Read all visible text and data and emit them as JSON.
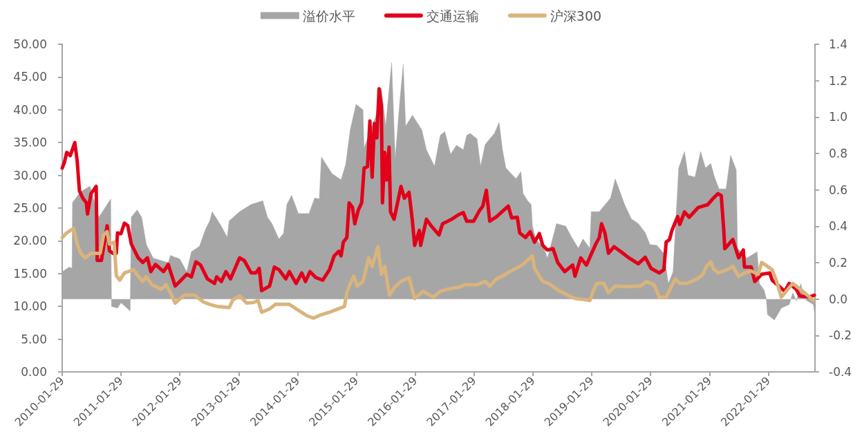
{
  "chart_data": {
    "type": "line",
    "legend": "top",
    "marker": "none",
    "xlim": [
      "2010-01-29",
      "2022-11-15"
    ],
    "xticks": [
      "2010-01-29",
      "2011-01-29",
      "2012-01-29",
      "2013-01-29",
      "2014-01-29",
      "2015-01-29",
      "2016-01-29",
      "2017-01-29",
      "2018-01-29",
      "2019-01-29",
      "2020-01-29",
      "2021-01-29",
      "2022-01-29"
    ],
    "ylim": [
      0,
      50
    ],
    "yticks": [
      {
        "value": 0,
        "label": "0.00"
      },
      {
        "value": 5,
        "label": "5.00"
      },
      {
        "value": 10,
        "label": "10.00"
      },
      {
        "value": 15,
        "label": "15.00"
      },
      {
        "value": 20,
        "label": "20.00"
      },
      {
        "value": 25,
        "label": "25.00"
      },
      {
        "value": 30,
        "label": "30.00"
      },
      {
        "value": 35,
        "label": "35.00"
      },
      {
        "value": 40,
        "label": "40.00"
      },
      {
        "value": 45,
        "label": "45.00"
      },
      {
        "value": 50,
        "label": "50.00"
      }
    ],
    "y2lim": [
      -0.4,
      1.4
    ],
    "y2ticks": [
      {
        "value": -0.4,
        "label": "-0.4"
      },
      {
        "value": -0.2,
        "label": "-0.2"
      },
      {
        "value": 0,
        "label": "0.0"
      },
      {
        "value": 0.2,
        "label": "0.2"
      },
      {
        "value": 0.4,
        "label": "0.4"
      },
      {
        "value": 0.6,
        "label": "0.6"
      },
      {
        "value": 0.8,
        "label": "0.8"
      },
      {
        "value": 1,
        "label": "1.0"
      },
      {
        "value": 1.2,
        "label": "1.2"
      },
      {
        "value": 1.4,
        "label": "1.4"
      }
    ],
    "series": [
      {
        "name": "溢价水平",
        "type": "area",
        "axis": "y2",
        "color": "#a6a6a6",
        "x": [
          "2010-01-29",
          "2010-03-13",
          "2010-03-31",
          "2010-04-03",
          "2010-05-24",
          "2010-07-20",
          "2010-09-14",
          "2010-11-26",
          "2010-12-01",
          "2011-01-07",
          "2011-01-29",
          "2011-03-27",
          "2011-04-03",
          "2011-05-09",
          "2011-06-06",
          "2011-07-05",
          "2011-08-17",
          "2011-11-18",
          "2011-12-02",
          "2012-01-29",
          "2012-03-12",
          "2012-04-10",
          "2012-05-30",
          "2012-07-05",
          "2012-08-02",
          "2012-08-17",
          "2012-10-13",
          "2012-11-18",
          "2012-12-01",
          "2013-02-03",
          "2013-04-16",
          "2013-06-27",
          "2013-07-26",
          "2013-08-23",
          "2013-10-05",
          "2013-11-03",
          "2013-11-24",
          "2013-12-23",
          "2014-02-03",
          "2014-04-10",
          "2014-05-15",
          "2014-06-13",
          "2014-06-26",
          "2014-08-30",
          "2014-10-26",
          "2014-11-24",
          "2014-12-22",
          "2015-01-27",
          "2015-03-11",
          "2015-03-18",
          "2015-05-28",
          "2015-07-03",
          "2015-07-30",
          "2015-09-05",
          "2015-09-27",
          "2015-10-26",
          "2015-11-16",
          "2015-12-01",
          "2016-01-12",
          "2016-03-10",
          "2016-04-08",
          "2016-05-28",
          "2016-07-03",
          "2016-07-31",
          "2016-09-05",
          "2016-10-11",
          "2016-11-23",
          "2016-12-14",
          "2017-01-05",
          "2017-02-16",
          "2017-03-10",
          "2017-04-08",
          "2017-06-04",
          "2017-07-03",
          "2017-07-24",
          "2017-08-14",
          "2017-10-17",
          "2017-11-15",
          "2017-11-29",
          "2017-12-27",
          "2018-01-18",
          "2018-01-26",
          "2018-02-16",
          "2018-04-07",
          "2018-04-29",
          "2018-06-10",
          "2018-06-24",
          "2018-08-21",
          "2018-09-26",
          "2018-11-07",
          "2018-12-06",
          "2019-01-17",
          "2019-01-26",
          "2019-03-17",
          "2019-05-26",
          "2019-06-24",
          "2019-07-23",
          "2019-08-21",
          "2019-10-02",
          "2019-11-14",
          "2019-12-27",
          "2020-01-25",
          "2020-03-09",
          "2020-04-21",
          "2020-05-19",
          "2020-06-17",
          "2020-07-22",
          "2020-08-27",
          "2020-09-18",
          "2020-10-31",
          "2020-12-05",
          "2021-01-04",
          "2021-02-06",
          "2021-03-01",
          "2021-03-29",
          "2021-05-12",
          "2021-06-09",
          "2021-07-14",
          "2021-07-22",
          "2021-09-17",
          "2021-11-21",
          "2021-12-05",
          "2022-01-03",
          "2022-01-17",
          "2022-01-24",
          "2022-03-08",
          "2022-04-20",
          "2022-06-08",
          "2022-06-30",
          "2022-07-23",
          "2022-08-19",
          "2022-09-10",
          "2022-11-05",
          "2022-11-11"
        ],
        "values": [
          0.15,
          0.175,
          0.17,
          0.53,
          0.59,
          0.62,
          0.45,
          0.55,
          -0.04,
          -0.05,
          -0.02,
          -0.065,
          0.45,
          0.49,
          0.45,
          0.3,
          0.225,
          0.2,
          0.24,
          0.22,
          0.15,
          0.26,
          0.29,
          0.38,
          0.43,
          0.48,
          0.4,
          0.34,
          0.43,
          0.48,
          0.52,
          0.54,
          0.45,
          0.415,
          0.33,
          0.36,
          0.52,
          0.57,
          0.47,
          0.47,
          0.555,
          0.55,
          0.78,
          0.69,
          0.655,
          0.74,
          0.93,
          1.07,
          1.04,
          0.83,
          1.0,
          1.16,
          0.95,
          1.3,
          0.77,
          1.09,
          1.29,
          0.95,
          1.01,
          0.93,
          0.82,
          0.73,
          0.9,
          0.92,
          0.795,
          0.845,
          0.82,
          0.9,
          0.91,
          0.88,
          0.73,
          0.85,
          0.91,
          0.97,
          0.82,
          0.72,
          0.66,
          0.7,
          0.58,
          0.54,
          0.52,
          0.4,
          0.33,
          0.28,
          0.225,
          0.365,
          0.415,
          0.4,
          0.34,
          0.28,
          0.33,
          0.28,
          0.48,
          0.48,
          0.555,
          0.66,
          0.59,
          0.52,
          0.44,
          0.415,
          0.365,
          0.3,
          0.295,
          0.25,
          0.085,
          0.15,
          0.72,
          0.81,
          0.68,
          0.67,
          0.81,
          0.72,
          0.745,
          0.67,
          0.605,
          0.605,
          0.79,
          0.71,
          0.28,
          0.225,
          0.26,
          0.085,
          0.05,
          0.0,
          -0.085,
          -0.115,
          -0.05,
          -0.03,
          0.035,
          -0.01,
          0.085,
          0.0,
          -0.03,
          -0.065
        ]
      },
      {
        "name": "交通运输",
        "color": "#e2001a",
        "x": [
          "2010-01-29",
          "2010-02-12",
          "2010-02-26",
          "2010-03-20",
          "2010-04-17",
          "2010-05-02",
          "2010-05-16",
          "2010-06-06",
          "2010-06-28",
          "2010-07-05",
          "2010-07-27",
          "2010-08-28",
          "2010-09-03",
          "2010-09-29",
          "2010-11-04",
          "2010-11-18",
          "2010-12-10",
          "2010-12-31",
          "2011-01-07",
          "2011-01-29",
          "2011-02-19",
          "2011-03-12",
          "2011-04-03",
          "2011-05-16",
          "2011-06-13",
          "2011-07-12",
          "2011-08-02",
          "2011-08-31",
          "2011-10-20",
          "2011-11-18",
          "2011-12-31",
          "2012-01-29",
          "2012-03-12",
          "2012-04-10",
          "2012-05-08",
          "2012-06-06",
          "2012-07-18",
          "2012-08-31",
          "2012-09-14",
          "2012-10-13",
          "2012-11-10",
          "2012-12-09",
          "2013-02-03",
          "2013-03-04",
          "2013-04-16",
          "2013-05-15",
          "2013-06-05",
          "2013-06-20",
          "2013-08-08",
          "2013-09-07",
          "2013-10-05",
          "2013-11-17",
          "2013-12-09",
          "2014-01-20",
          "2014-02-24",
          "2014-03-19",
          "2014-04-16",
          "2014-05-22",
          "2014-07-04",
          "2014-08-15",
          "2014-09-13",
          "2014-10-12",
          "2014-10-26",
          "2014-11-09",
          "2014-12-01",
          "2014-12-15",
          "2015-01-05",
          "2015-01-19",
          "2015-02-10",
          "2015-03-03",
          "2015-03-18",
          "2015-04-08",
          "2015-04-23",
          "2015-05-07",
          "2015-05-21",
          "2015-06-05",
          "2015-06-19",
          "2015-07-03",
          "2015-07-10",
          "2015-07-24",
          "2015-08-05",
          "2015-08-20",
          "2015-08-29",
          "2015-09-20",
          "2015-11-02",
          "2015-11-23",
          "2015-12-22",
          "2016-01-12",
          "2016-01-26",
          "2016-02-24",
          "2016-03-03",
          "2016-04-08",
          "2016-05-07",
          "2016-06-25",
          "2016-07-17",
          "2016-09-12",
          "2016-10-25",
          "2016-11-23",
          "2016-12-14",
          "2017-01-26",
          "2017-03-03",
          "2017-03-24",
          "2017-04-15",
          "2017-05-06",
          "2017-06-18",
          "2017-08-29",
          "2017-09-19",
          "2017-10-24",
          "2017-11-08",
          "2017-12-14",
          "2018-01-12",
          "2018-02-08",
          "2018-03-10",
          "2018-03-31",
          "2018-04-29",
          "2018-06-03",
          "2018-07-02",
          "2018-08-14",
          "2018-10-03",
          "2018-10-17",
          "2018-11-22",
          "2018-12-27",
          "2019-02-23",
          "2019-03-17",
          "2019-03-31",
          "2019-04-21",
          "2019-05-13",
          "2019-06-17",
          "2019-08-06",
          "2019-09-11",
          "2019-11-14",
          "2019-12-27",
          "2020-02-01",
          "2020-03-23",
          "2020-04-21",
          "2020-05-05",
          "2020-05-26",
          "2020-06-10",
          "2020-07-15",
          "2020-07-29",
          "2020-08-27",
          "2020-09-25",
          "2020-11-21",
          "2021-01-17",
          "2021-02-22",
          "2021-03-22",
          "2021-04-12",
          "2021-04-27",
          "2021-05-04",
          "2021-06-23",
          "2021-07-29",
          "2021-08-27",
          "2021-09-03",
          "2021-10-15",
          "2021-11-06",
          "2021-12-19",
          "2022-02-07",
          "2022-02-22",
          "2022-04-05",
          "2022-05-11",
          "2022-06-08",
          "2022-07-22",
          "2022-08-12",
          "2022-10-08",
          "2022-11-11"
        ],
        "values": [
          31.1,
          32.0,
          33.5,
          33.0,
          35.0,
          32.2,
          27.6,
          26.5,
          25.8,
          24.1,
          27.2,
          28.3,
          17.0,
          17.0,
          22.3,
          18.5,
          18.1,
          18.1,
          21.2,
          21.1,
          22.7,
          22.3,
          19.5,
          17.4,
          16.7,
          17.4,
          15.3,
          16.4,
          15.3,
          16.4,
          13.1,
          13.8,
          14.9,
          14.5,
          16.8,
          16.3,
          14.2,
          13.5,
          14.5,
          13.8,
          15.3,
          14.2,
          17.4,
          17.0,
          15.1,
          15.1,
          15.8,
          12.4,
          13.1,
          16.0,
          15.6,
          14.2,
          15.3,
          13.5,
          15.1,
          13.8,
          15.3,
          14.4,
          14.0,
          15.6,
          17.7,
          18.4,
          17.7,
          19.8,
          20.5,
          25.8,
          25.1,
          22.6,
          24.7,
          25.8,
          31.1,
          31.3,
          38.3,
          29.7,
          37.9,
          35.7,
          43.2,
          40.6,
          25.8,
          33.5,
          29.3,
          34.3,
          24.4,
          23.3,
          28.3,
          26.5,
          27.4,
          23.0,
          19.3,
          21.6,
          19.3,
          23.3,
          22.3,
          20.9,
          22.6,
          23.3,
          24.0,
          24.3,
          23.0,
          23.0,
          24.6,
          25.3,
          27.7,
          23.0,
          23.7,
          25.3,
          23.5,
          23.6,
          21.2,
          20.5,
          21.4,
          19.8,
          21.1,
          19.3,
          18.6,
          18.8,
          16.7,
          15.3,
          16.3,
          14.6,
          17.4,
          16.3,
          19.5,
          20.5,
          22.6,
          21.2,
          18.1,
          19.1,
          18.2,
          17.5,
          16.5,
          17.5,
          15.8,
          15.1,
          15.6,
          19.8,
          20.2,
          21.6,
          23.7,
          22.5,
          24.4,
          23.6,
          25.1,
          25.5,
          26.5,
          27.2,
          26.9,
          21.9,
          18.8,
          20.2,
          17.4,
          18.6,
          16.0,
          16.0,
          13.8,
          14.9,
          15.1,
          14.0,
          13.1,
          12.3,
          13.5,
          12.6,
          11.6,
          11.4,
          11.7
        ]
      },
      {
        "name": "沪深300",
        "color": "#d9b47c",
        "x": [
          "2010-01-29",
          "2010-02-26",
          "2010-04-10",
          "2010-05-02",
          "2010-05-24",
          "2010-06-21",
          "2010-07-27",
          "2010-09-22",
          "2010-10-13",
          "2010-11-04",
          "2010-11-18",
          "2010-12-17",
          "2010-12-31",
          "2011-01-21",
          "2011-02-19",
          "2011-04-17",
          "2011-05-16",
          "2011-06-13",
          "2011-07-05",
          "2011-08-09",
          "2011-10-06",
          "2011-11-04",
          "2011-12-02",
          "2011-12-31",
          "2012-02-25",
          "2012-05-01",
          "2012-06-21",
          "2012-08-02",
          "2012-09-14",
          "2012-12-01",
          "2012-12-23",
          "2013-02-03",
          "2013-03-19",
          "2013-05-01",
          "2013-05-29",
          "2013-06-20",
          "2013-08-08",
          "2013-09-13",
          "2013-12-09",
          "2014-01-27",
          "2014-03-26",
          "2014-05-08",
          "2014-06-12",
          "2014-08-15",
          "2014-09-27",
          "2014-11-16",
          "2014-12-01",
          "2014-12-22",
          "2015-01-13",
          "2015-02-03",
          "2015-03-11",
          "2015-04-16",
          "2015-05-07",
          "2015-06-12",
          "2015-07-03",
          "2015-07-24",
          "2015-08-22",
          "2015-09-20",
          "2015-11-02",
          "2015-12-22",
          "2016-01-26",
          "2016-03-18",
          "2016-05-21",
          "2016-07-03",
          "2016-08-14",
          "2016-11-08",
          "2016-11-30",
          "2017-02-16",
          "2017-04-08",
          "2017-05-06",
          "2017-06-18",
          "2017-07-31",
          "2017-09-05",
          "2017-10-17",
          "2017-11-23",
          "2018-01-26",
          "2018-02-08",
          "2018-03-31",
          "2018-05-06",
          "2018-07-16",
          "2018-10-17",
          "2018-12-27",
          "2019-01-18",
          "2019-02-08",
          "2019-03-02",
          "2019-04-14",
          "2019-05-13",
          "2019-06-24",
          "2019-09-04",
          "2019-11-29",
          "2020-01-04",
          "2020-02-20",
          "2020-03-23",
          "2020-05-05",
          "2020-07-01",
          "2020-07-29",
          "2020-09-11",
          "2020-11-14",
          "2020-12-20",
          "2021-01-10",
          "2021-02-06",
          "2021-02-22",
          "2021-03-22",
          "2021-05-19",
          "2021-06-23",
          "2021-07-29",
          "2021-09-03",
          "2021-10-15",
          "2021-11-27",
          "2021-12-19",
          "2022-02-22",
          "2022-03-22",
          "2022-04-20",
          "2022-06-30",
          "2022-09-10",
          "2022-11-05"
        ],
        "values": [
          20.5,
          21.2,
          21.9,
          19.5,
          18.1,
          17.4,
          18.1,
          18.1,
          20.9,
          21.4,
          19.5,
          19.8,
          14.7,
          14.0,
          15.1,
          15.6,
          14.6,
          13.8,
          14.5,
          13.3,
          12.6,
          13.3,
          12.1,
          10.5,
          11.7,
          11.7,
          10.7,
          10.3,
          10.0,
          9.8,
          11.0,
          11.6,
          10.5,
          10.6,
          10.9,
          9.1,
          9.6,
          10.3,
          10.3,
          9.5,
          8.6,
          8.2,
          8.6,
          9.1,
          9.5,
          10.0,
          12.1,
          13.5,
          14.6,
          13.1,
          13.8,
          17.4,
          16.1,
          19.1,
          14.9,
          16.1,
          11.7,
          12.8,
          13.8,
          14.4,
          11.2,
          12.3,
          11.4,
          12.3,
          12.6,
          13.0,
          13.3,
          13.3,
          13.8,
          13.1,
          14.2,
          14.7,
          15.3,
          15.8,
          16.3,
          17.7,
          15.8,
          13.8,
          13.5,
          12.3,
          11.2,
          11.0,
          10.9,
          12.4,
          13.5,
          13.5,
          12.1,
          13.1,
          13.0,
          13.1,
          13.8,
          13.3,
          11.4,
          11.4,
          14.2,
          13.5,
          13.5,
          14.2,
          14.9,
          16.1,
          16.8,
          15.8,
          15.1,
          15.6,
          16.1,
          14.6,
          15.1,
          15.4,
          14.9,
          16.7,
          15.6,
          13.8,
          11.4,
          13.5,
          12.1,
          10.9
        ]
      }
    ]
  }
}
